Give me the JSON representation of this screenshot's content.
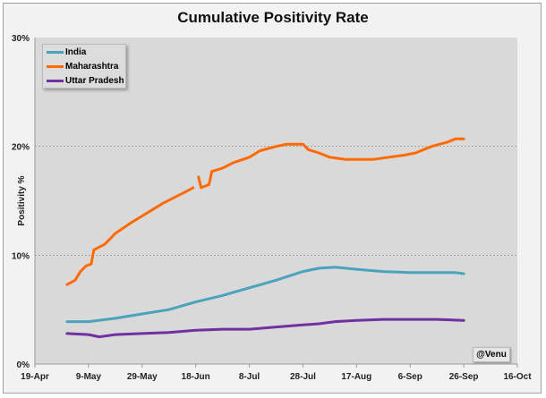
{
  "chart_data": {
    "type": "line",
    "title": "Cumulative Positivity Rate",
    "xlabel": "",
    "ylabel": "Positivity %",
    "ylim": [
      0,
      30
    ],
    "yticks": [
      "0%",
      "10%",
      "20%",
      "30%"
    ],
    "xlim": [
      "2020-04-19",
      "2020-10-16"
    ],
    "xticks": [
      "19-Apr",
      "9-May",
      "29-May",
      "18-Jun",
      "8-Jul",
      "28-Jul",
      "17-Aug",
      "6-Sep",
      "26-Sep",
      "16-Oct"
    ],
    "grid": "horizontal dashed",
    "legend": "top-left",
    "annotation": "@Venu",
    "series": [
      {
        "name": "India",
        "color": "#4aa3bd",
        "x": [
          "2020-05-01",
          "2020-05-09",
          "2020-05-19",
          "2020-05-29",
          "2020-06-08",
          "2020-06-18",
          "2020-06-28",
          "2020-07-08",
          "2020-07-18",
          "2020-07-28",
          "2020-08-03",
          "2020-08-09",
          "2020-08-17",
          "2020-08-27",
          "2020-09-06",
          "2020-09-16",
          "2020-09-23",
          "2020-09-26"
        ],
        "y": [
          3.9,
          3.9,
          4.2,
          4.6,
          5.0,
          5.7,
          6.3,
          7.0,
          7.7,
          8.5,
          8.8,
          8.9,
          8.7,
          8.5,
          8.4,
          8.4,
          8.4,
          8.3
        ]
      },
      {
        "name": "Maharashtra",
        "color": "#ff6a00",
        "x": [
          "2020-05-01",
          "2020-05-04",
          "2020-05-06",
          "2020-05-08",
          "2020-05-10",
          "2020-05-11",
          "2020-05-15",
          "2020-05-19",
          "2020-05-25",
          "2020-05-29",
          "2020-06-02",
          "2020-06-06",
          "2020-06-10",
          "2020-06-14",
          "2020-06-17",
          "2020-06-18",
          "2020-06-19",
          "2020-06-20",
          "2020-06-23",
          "2020-06-24",
          "2020-06-28",
          "2020-07-02",
          "2020-07-08",
          "2020-07-12",
          "2020-07-18",
          "2020-07-22",
          "2020-07-28",
          "2020-07-30",
          "2020-08-03",
          "2020-08-07",
          "2020-08-13",
          "2020-08-23",
          "2020-08-29",
          "2020-09-04",
          "2020-09-08",
          "2020-09-14",
          "2020-09-20",
          "2020-09-23",
          "2020-09-26"
        ],
        "y": [
          7.3,
          7.7,
          8.5,
          9.0,
          9.2,
          10.5,
          11.0,
          12.0,
          13.0,
          13.6,
          14.2,
          14.8,
          15.3,
          15.8,
          16.2,
          null,
          17.2,
          16.2,
          16.5,
          17.7,
          18.0,
          18.5,
          19.0,
          19.6,
          20.0,
          20.2,
          20.2,
          19.7,
          19.4,
          19.0,
          18.8,
          18.8,
          19.0,
          19.2,
          19.4,
          20.0,
          20.4,
          20.7,
          20.7
        ]
      },
      {
        "name": "Uttar Pradesh",
        "color": "#7030a0",
        "x": [
          "2020-05-01",
          "2020-05-09",
          "2020-05-13",
          "2020-05-19",
          "2020-05-29",
          "2020-06-08",
          "2020-06-18",
          "2020-06-28",
          "2020-07-08",
          "2020-07-18",
          "2020-07-28",
          "2020-08-03",
          "2020-08-09",
          "2020-08-17",
          "2020-08-27",
          "2020-09-06",
          "2020-09-16",
          "2020-09-26"
        ],
        "y": [
          2.8,
          2.7,
          2.5,
          2.7,
          2.8,
          2.9,
          3.1,
          3.2,
          3.2,
          3.4,
          3.6,
          3.7,
          3.9,
          4.0,
          4.1,
          4.1,
          4.1,
          4.0
        ]
      }
    ]
  }
}
